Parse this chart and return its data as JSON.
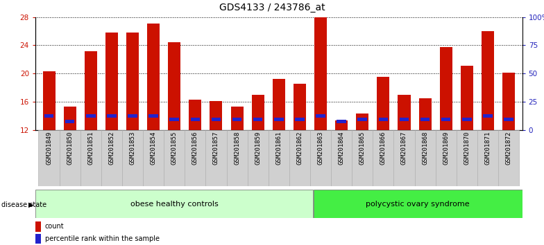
{
  "title": "GDS4133 / 243786_at",
  "samples": [
    "GSM201849",
    "GSM201850",
    "GSM201851",
    "GSM201852",
    "GSM201853",
    "GSM201854",
    "GSM201855",
    "GSM201856",
    "GSM201857",
    "GSM201858",
    "GSM201859",
    "GSM201861",
    "GSM201862",
    "GSM201863",
    "GSM201864",
    "GSM201865",
    "GSM201866",
    "GSM201867",
    "GSM201868",
    "GSM201869",
    "GSM201870",
    "GSM201871",
    "GSM201872"
  ],
  "count_values": [
    20.3,
    15.3,
    23.2,
    25.8,
    25.8,
    27.1,
    24.4,
    16.3,
    16.1,
    15.3,
    17.0,
    19.2,
    18.5,
    28.0,
    13.3,
    14.3,
    19.5,
    17.0,
    16.5,
    23.8,
    21.1,
    26.0,
    20.1
  ],
  "percentile_values": [
    14.0,
    13.2,
    14.0,
    14.0,
    14.0,
    14.0,
    13.5,
    13.5,
    13.5,
    13.5,
    13.5,
    13.5,
    13.5,
    14.0,
    13.2,
    13.5,
    13.5,
    13.5,
    13.5,
    13.5,
    13.5,
    14.0,
    13.5
  ],
  "ymin": 12,
  "ymax": 28,
  "yticks_left": [
    12,
    16,
    20,
    24,
    28
  ],
  "yticks_right": [
    0,
    25,
    50,
    75,
    100
  ],
  "right_yticklabels": [
    "0",
    "25",
    "50",
    "75",
    "100%"
  ],
  "bar_color_red": "#cc1100",
  "bar_color_blue": "#2222cc",
  "bar_width": 0.6,
  "group1_label": "obese healthy controls",
  "group2_label": "polycystic ovary syndrome",
  "group1_count": 13,
  "bg_color_plot": "#ffffff",
  "bg_color_label1": "#ccffcc",
  "bg_color_label2": "#44ee44",
  "label_color_left": "#cc1100",
  "label_color_right": "#2222bb",
  "title_fontsize": 10,
  "tick_fontsize": 6.5,
  "group_fontsize": 8
}
